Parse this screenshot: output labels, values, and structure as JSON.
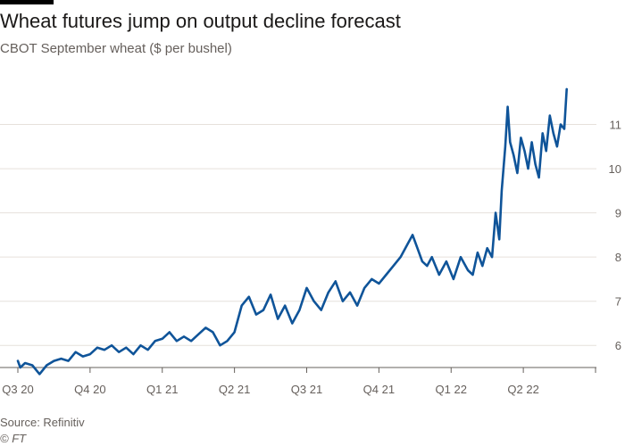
{
  "header": {
    "title": "Wheat futures jump on output decline forecast",
    "subtitle": "CBOT September wheat ($ per bushel)"
  },
  "footer": {
    "source": "Source: Refinitiv",
    "credit": "© FT"
  },
  "colors": {
    "line": "#0f5499",
    "grid": "#e6e1db",
    "axis": "#66605c"
  },
  "chart_data": {
    "type": "line",
    "title": "Wheat futures jump on output decline forecast",
    "subtitle": "CBOT September wheat ($ per bushel)",
    "xlabel": "",
    "ylabel": "$ per bushel",
    "ylim": [
      5.5,
      12
    ],
    "xlim": [
      0,
      24
    ],
    "grid": true,
    "y_ticks": [
      6,
      7,
      8,
      9,
      10,
      11
    ],
    "y_tick_labels": [
      "6",
      "7",
      "8",
      "9",
      "10",
      "11"
    ],
    "x_ticks": [
      0,
      3,
      6,
      9,
      12,
      15,
      18,
      21
    ],
    "x_tick_labels": [
      "Q3 20",
      "Q4 20",
      "Q1 21",
      "Q2 21",
      "Q3 21",
      "Q4 21",
      "Q1 22",
      "Q2 22"
    ],
    "series": [
      {
        "name": "CBOT September wheat",
        "x": [
          0,
          0.1,
          0.3,
          0.6,
          0.9,
          1.2,
          1.5,
          1.8,
          2.1,
          2.4,
          2.7,
          3.0,
          3.3,
          3.6,
          3.9,
          4.2,
          4.5,
          4.8,
          5.1,
          5.4,
          5.7,
          6.0,
          6.3,
          6.6,
          6.9,
          7.2,
          7.5,
          7.8,
          8.1,
          8.4,
          8.7,
          9.0,
          9.3,
          9.6,
          9.9,
          10.2,
          10.5,
          10.8,
          11.1,
          11.4,
          11.7,
          12.0,
          12.3,
          12.6,
          12.9,
          13.2,
          13.5,
          13.8,
          14.1,
          14.4,
          14.7,
          15.0,
          15.3,
          15.6,
          15.9,
          16.2,
          16.4,
          16.6,
          16.8,
          17.0,
          17.2,
          17.5,
          17.8,
          18.1,
          18.4,
          18.7,
          18.9,
          19.1,
          19.3,
          19.5,
          19.7,
          19.85,
          20.0,
          20.1,
          20.25,
          20.35,
          20.45,
          20.6,
          20.75,
          20.9,
          21.05,
          21.2,
          21.35,
          21.5,
          21.65,
          21.8,
          21.95,
          22.1,
          22.25,
          22.4,
          22.55,
          22.7,
          22.8
        ],
        "values": [
          5.65,
          5.5,
          5.6,
          5.55,
          5.35,
          5.55,
          5.65,
          5.7,
          5.65,
          5.85,
          5.75,
          5.8,
          5.95,
          5.9,
          6.0,
          5.85,
          5.95,
          5.8,
          6.0,
          5.9,
          6.1,
          6.15,
          6.3,
          6.1,
          6.2,
          6.1,
          6.25,
          6.4,
          6.3,
          6.0,
          6.1,
          6.3,
          6.9,
          7.1,
          6.7,
          6.8,
          7.15,
          6.6,
          6.9,
          6.5,
          6.8,
          7.3,
          7.0,
          6.8,
          7.2,
          7.45,
          7.0,
          7.2,
          6.9,
          7.3,
          7.5,
          7.4,
          7.6,
          7.8,
          8.0,
          8.3,
          8.5,
          8.2,
          7.9,
          7.8,
          8.0,
          7.6,
          7.9,
          7.5,
          8.0,
          7.7,
          7.6,
          8.1,
          7.8,
          8.2,
          8.0,
          9.0,
          8.4,
          9.5,
          10.5,
          11.4,
          10.6,
          10.3,
          9.9,
          10.7,
          10.4,
          10.0,
          10.6,
          10.1,
          9.8,
          10.8,
          10.4,
          11.2,
          10.8,
          10.5,
          11.0,
          10.9,
          11.8
        ]
      }
    ]
  }
}
